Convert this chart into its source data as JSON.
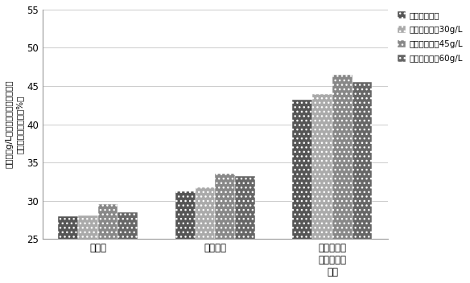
{
  "categories": [
    "生物量",
    "油脂含量",
    "花生四烯酸\n在油脂中的\n含量"
  ],
  "series": [
    {
      "label": "未添加紫球藻",
      "color": "#555555",
      "hatch": "...",
      "values": [
        28.0,
        31.2,
        43.2
      ]
    },
    {
      "label": "紫球藻添加量30g/L",
      "color": "#aaaaaa",
      "hatch": "...",
      "values": [
        28.1,
        31.8,
        44.0
      ]
    },
    {
      "label": "紫球藻添加量45g/L",
      "color": "#888888",
      "hatch": "...",
      "values": [
        29.5,
        33.5,
        46.5
      ]
    },
    {
      "label": "紫球藻添加量60g/L",
      "color": "#666666",
      "hatch": "...",
      "values": [
        28.5,
        33.2,
        45.5
      ]
    }
  ],
  "ylabel": "生物量（g/L）、油脂含量及花生四烯\n酸在油脂中的含量（%）",
  "ylim": [
    25,
    55
  ],
  "yticks": [
    25,
    30,
    35,
    40,
    45,
    50,
    55
  ],
  "bar_width": 0.17,
  "background_color": "#ffffff",
  "plot_bg_color": "#ffffff",
  "grid_color": "#cccccc",
  "spine_color": "#999999"
}
